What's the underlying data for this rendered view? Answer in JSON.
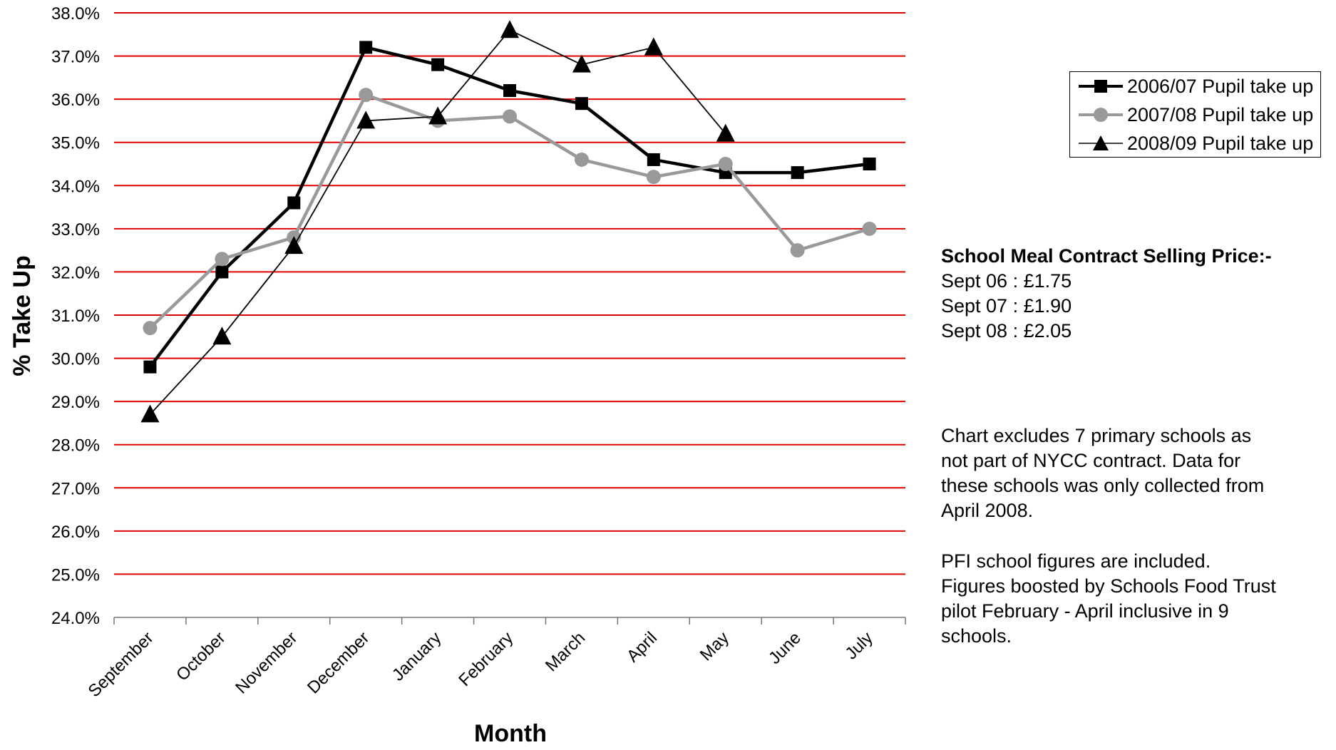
{
  "chart_data": {
    "type": "line",
    "categories": [
      "September",
      "October",
      "November",
      "December",
      "January",
      "February",
      "March",
      "April",
      "May",
      "June",
      "July"
    ],
    "ylabel": "% Take Up",
    "xlabel": "Month",
    "ylim": [
      24,
      38
    ],
    "ytick_step": 1,
    "y_tick_format": "percent_1dp",
    "grid": true,
    "grid_color": "#e00000",
    "legend_position": "right",
    "series": [
      {
        "name": "2006/07 Pupil take up",
        "color": "#000000",
        "marker": "square",
        "values": [
          29.8,
          32.0,
          33.6,
          37.2,
          36.8,
          36.2,
          35.9,
          34.6,
          34.3,
          34.3,
          34.5
        ]
      },
      {
        "name": "2007/08 Pupil take up",
        "color": "#999999",
        "marker": "circle",
        "values": [
          30.7,
          32.3,
          32.8,
          36.1,
          35.5,
          35.6,
          34.6,
          34.2,
          34.5,
          32.5,
          33.0
        ]
      },
      {
        "name": "2008/09 Pupil take up",
        "color": "#000000",
        "marker": "triangle",
        "values": [
          28.7,
          30.5,
          32.6,
          35.5,
          35.6,
          37.6,
          36.8,
          37.2,
          35.2,
          null,
          null
        ]
      }
    ]
  },
  "price_info": {
    "title": "School Meal Contract Selling Price:-",
    "lines": [
      "Sept 06 :  £1.75",
      "Sept 07 :  £1.90",
      "Sept 08 :  £2.05"
    ]
  },
  "notes": {
    "exclusion_lines": [
      "Chart excludes 7 primary schools as",
      "not part of NYCC contract.  Data for",
      "these schools was only collected from",
      "April 2008."
    ],
    "pfi_lines": [
      "PFI school figures are included.",
      "Figures boosted by Schools Food Trust",
      "pilot February - April inclusive in 9",
      "schools."
    ]
  }
}
